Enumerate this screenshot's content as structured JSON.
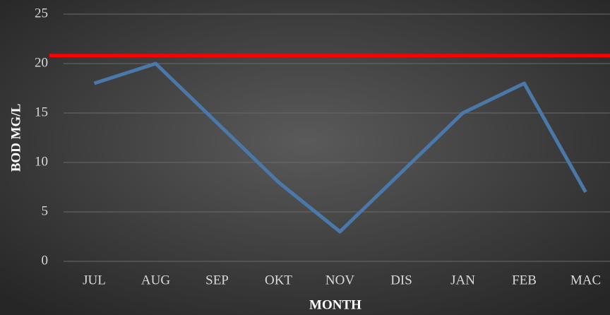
{
  "chart_data": {
    "type": "line",
    "x_label": "MONTH",
    "y_label": "BOD MG/L",
    "categories": [
      "JUL",
      "AUG",
      "SEP",
      "OKT",
      "NOV",
      "DIS",
      "JAN",
      "FEB",
      "MAC"
    ],
    "series": [
      {
        "color": "#4a78a8",
        "values": [
          18,
          20,
          14,
          8,
          3,
          9,
          15,
          18,
          7
        ]
      }
    ],
    "reference_line": {
      "value": 20.8,
      "color": "#ff0000"
    },
    "ylim": [
      0,
      25
    ],
    "yticks": [
      0,
      5,
      10,
      15,
      20,
      25
    ],
    "grid": true
  }
}
